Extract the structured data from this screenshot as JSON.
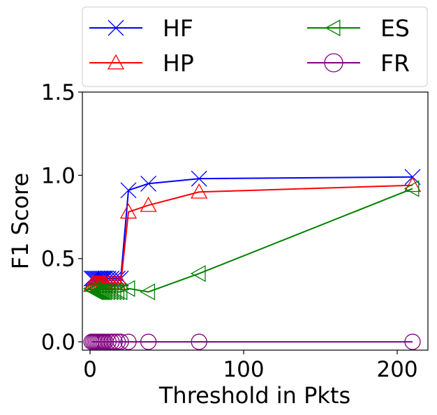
{
  "chart_data": {
    "type": "line",
    "xlabel": "Threshold in Pkts",
    "ylabel": "F1 Score",
    "xlim": [
      -5,
      220
    ],
    "ylim": [
      -0.05,
      1.5
    ],
    "xticks": [
      0,
      100,
      200
    ],
    "yticks": [
      0.0,
      0.5,
      1.0,
      1.5
    ],
    "xtick_labels": [
      "0",
      "100",
      "200"
    ],
    "ytick_labels": [
      "0.0",
      "0.5",
      "1.0",
      "1.5"
    ],
    "grid": false,
    "legend": {
      "placement": "top, outside plot, 2 columns"
    },
    "series": [
      {
        "name": "HF",
        "color": "#0000ff",
        "marker": "x",
        "x": [
          1,
          2,
          3,
          4,
          5,
          6,
          7,
          8,
          9,
          10,
          12,
          14,
          16,
          18,
          20,
          25,
          38,
          71,
          210
        ],
        "y": [
          0.38,
          0.38,
          0.38,
          0.38,
          0.38,
          0.38,
          0.38,
          0.38,
          0.38,
          0.38,
          0.38,
          0.38,
          0.38,
          0.38,
          0.38,
          0.91,
          0.95,
          0.98,
          0.99
        ]
      },
      {
        "name": "HP",
        "color": "#ff0000",
        "marker": "triangle-up",
        "x": [
          1,
          2,
          3,
          4,
          5,
          6,
          7,
          8,
          9,
          10,
          12,
          14,
          16,
          18,
          20,
          25,
          38,
          71,
          210
        ],
        "y": [
          0.34,
          0.35,
          0.35,
          0.35,
          0.35,
          0.35,
          0.35,
          0.35,
          0.35,
          0.35,
          0.35,
          0.35,
          0.35,
          0.35,
          0.35,
          0.78,
          0.82,
          0.9,
          0.94
        ]
      },
      {
        "name": "ES",
        "color": "#008000",
        "marker": "triangle-left",
        "x": [
          1,
          2,
          3,
          4,
          5,
          6,
          7,
          8,
          9,
          10,
          12,
          14,
          16,
          18,
          20,
          25,
          38,
          71,
          210
        ],
        "y": [
          0.32,
          0.31,
          0.31,
          0.3,
          0.3,
          0.3,
          0.3,
          0.3,
          0.3,
          0.3,
          0.3,
          0.3,
          0.3,
          0.3,
          0.3,
          0.32,
          0.3,
          0.41,
          0.92
        ]
      },
      {
        "name": "FR",
        "color": "#800080",
        "marker": "circle",
        "x": [
          1,
          2,
          3,
          4,
          5,
          6,
          7,
          8,
          9,
          10,
          12,
          14,
          16,
          18,
          20,
          25,
          38,
          71,
          210
        ],
        "y": [
          0.0,
          0.0,
          0.0,
          0.0,
          0.0,
          0.0,
          0.0,
          0.0,
          0.0,
          0.0,
          0.0,
          0.0,
          0.0,
          0.0,
          0.0,
          0.0,
          0.0,
          0.0,
          0.0
        ]
      }
    ]
  }
}
